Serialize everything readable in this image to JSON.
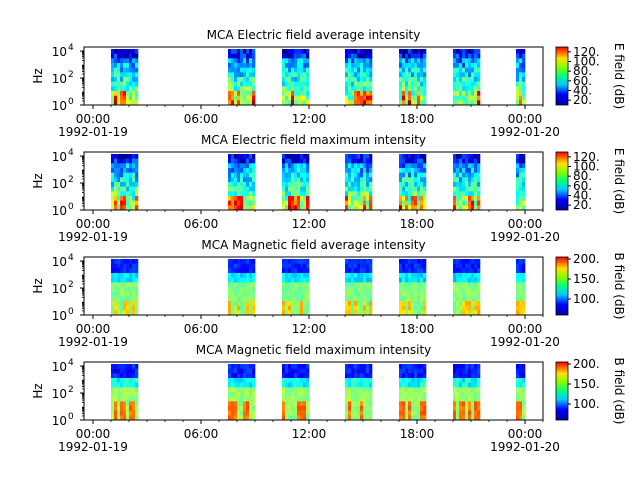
{
  "chart_data": [
    {
      "type": "heatmap",
      "title": "MCA  Electric field average intensity",
      "ylabel": "Hz",
      "colorbar_label": "E field (dB)",
      "colorbar_ticks": [
        "20.",
        "40.",
        "60.",
        "80.",
        "100.",
        "120."
      ],
      "colorbar_range": [
        10,
        130
      ],
      "y_scale": "log",
      "yticks": [
        {
          "base": "10",
          "exp": "0"
        },
        {
          "base": "10",
          "exp": "2"
        },
        {
          "base": "10",
          "exp": "4"
        }
      ],
      "xticks": [
        "00:00",
        "06:00",
        "12:00",
        "18:00",
        "00:00"
      ],
      "date_labels": [
        "1992-01-19",
        "1992-01-20"
      ],
      "x_range_hours": [
        -0.5,
        25.0
      ],
      "y_range_log10": [
        0,
        4.3
      ],
      "data_segments_hours": [
        [
          1.0,
          2.5
        ],
        [
          7.5,
          9.0
        ],
        [
          10.5,
          12.0
        ],
        [
          14.0,
          15.5
        ],
        [
          17.0,
          18.5
        ],
        [
          20.0,
          21.5
        ],
        [
          23.5,
          24.0
        ]
      ],
      "intensity_profile": "electric"
    },
    {
      "type": "heatmap",
      "title": "MCA  Electric field maximum intensity",
      "ylabel": "Hz",
      "colorbar_label": "E field (dB)",
      "colorbar_ticks": [
        "20.",
        "40.",
        "60.",
        "80.",
        "100.",
        "120."
      ],
      "colorbar_range": [
        10,
        130
      ],
      "y_scale": "log",
      "yticks": [
        {
          "base": "10",
          "exp": "0"
        },
        {
          "base": "10",
          "exp": "2"
        },
        {
          "base": "10",
          "exp": "4"
        }
      ],
      "xticks": [
        "00:00",
        "06:00",
        "12:00",
        "18:00",
        "00:00"
      ],
      "date_labels": [
        "1992-01-19",
        "1992-01-20"
      ],
      "x_range_hours": [
        -0.5,
        25.0
      ],
      "y_range_log10": [
        0,
        4.3
      ],
      "data_segments_hours": [
        [
          1.0,
          2.5
        ],
        [
          7.5,
          9.0
        ],
        [
          10.5,
          12.0
        ],
        [
          14.0,
          15.5
        ],
        [
          17.0,
          18.5
        ],
        [
          20.0,
          21.5
        ],
        [
          23.5,
          24.0
        ]
      ],
      "intensity_profile": "electric"
    },
    {
      "type": "heatmap",
      "title": "MCA  Magnetic field average intensity",
      "ylabel": "Hz",
      "colorbar_label": "B field (dB)",
      "colorbar_ticks": [
        "100.",
        "150.",
        "200."
      ],
      "colorbar_range": [
        60,
        205
      ],
      "y_scale": "log",
      "yticks": [
        {
          "base": "10",
          "exp": "0"
        },
        {
          "base": "10",
          "exp": "2"
        },
        {
          "base": "10",
          "exp": "4"
        }
      ],
      "xticks": [
        "00:00",
        "06:00",
        "12:00",
        "18:00",
        "00:00"
      ],
      "date_labels": [
        "1992-01-19",
        "1992-01-20"
      ],
      "x_range_hours": [
        -0.5,
        25.0
      ],
      "y_range_log10": [
        0,
        4.3
      ],
      "data_segments_hours": [
        [
          1.0,
          2.5
        ],
        [
          7.5,
          9.0
        ],
        [
          10.5,
          12.0
        ],
        [
          14.0,
          15.5
        ],
        [
          17.0,
          18.5
        ],
        [
          20.0,
          21.5
        ],
        [
          23.5,
          24.0
        ]
      ],
      "intensity_profile": "magnetic"
    },
    {
      "type": "heatmap",
      "title": "MCA  Magnetic field maximum intensity",
      "ylabel": "Hz",
      "colorbar_label": "B field (dB)",
      "colorbar_ticks": [
        "100.",
        "150.",
        "200."
      ],
      "colorbar_range": [
        60,
        205
      ],
      "y_scale": "log",
      "yticks": [
        {
          "base": "10",
          "exp": "0"
        },
        {
          "base": "10",
          "exp": "2"
        },
        {
          "base": "10",
          "exp": "4"
        }
      ],
      "xticks": [
        "00:00",
        "06:00",
        "12:00",
        "18:00",
        "00:00"
      ],
      "date_labels": [
        "1992-01-19",
        "1992-01-20"
      ],
      "x_range_hours": [
        -0.5,
        25.0
      ],
      "y_range_log10": [
        0,
        4.3
      ],
      "data_segments_hours": [
        [
          1.0,
          2.5
        ],
        [
          7.5,
          9.0
        ],
        [
          10.5,
          12.0
        ],
        [
          14.0,
          15.5
        ],
        [
          17.0,
          18.5
        ],
        [
          20.0,
          21.5
        ],
        [
          23.5,
          24.0
        ]
      ],
      "intensity_profile": "magnetic-max"
    }
  ]
}
